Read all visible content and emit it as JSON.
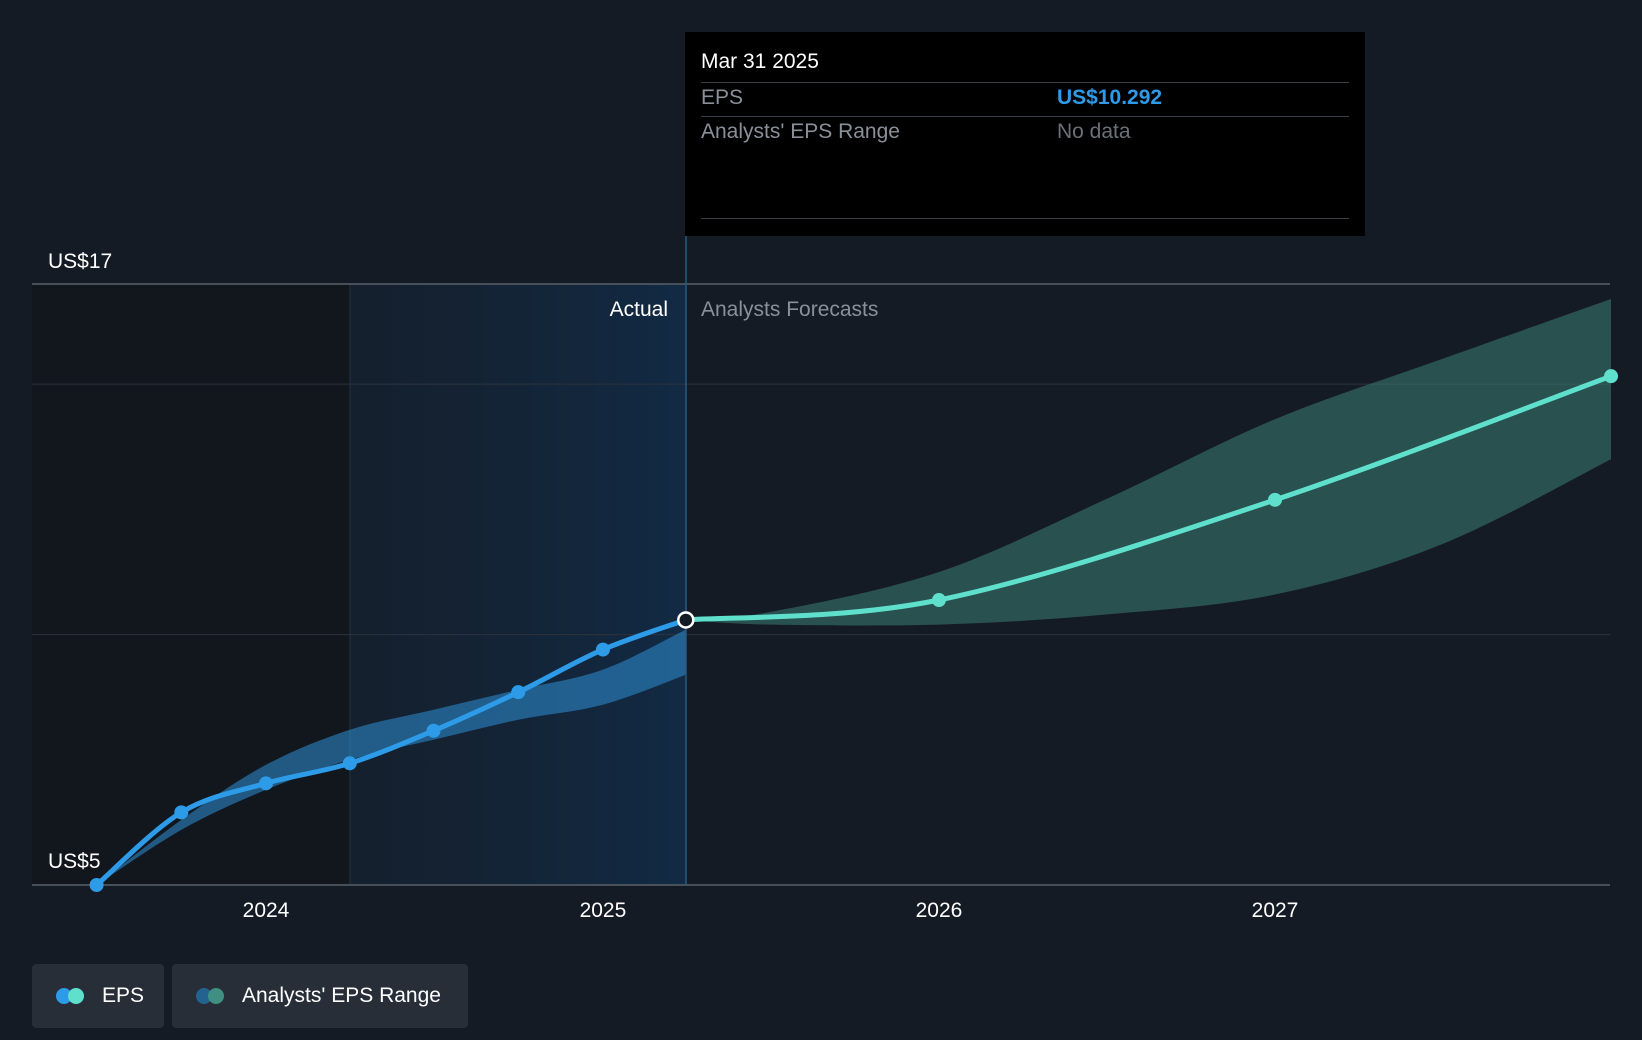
{
  "chart_data": {
    "type": "line",
    "y_axis": {
      "top_label": "US$17",
      "bottom_label": "US$5",
      "ylim": [
        5,
        17
      ],
      "gridlines": [
        5,
        10,
        15,
        17
      ]
    },
    "x_axis": {
      "tick_labels": [
        "2024",
        "2025",
        "2026",
        "2027"
      ]
    },
    "region_labels": {
      "actual": "Actual",
      "forecast": "Analysts Forecasts"
    },
    "series": [
      {
        "name": "EPS",
        "kind": "actual",
        "color": "#2d9be8",
        "points": [
          [
            "2023-06-30",
            5.0
          ],
          [
            "2023-09-30",
            6.45
          ],
          [
            "2023-12-31",
            7.03
          ],
          [
            "2024-03-31",
            7.43
          ],
          [
            "2024-06-30",
            8.08
          ],
          [
            "2024-09-30",
            8.85
          ],
          [
            "2024-12-31",
            9.7
          ],
          [
            "2025-03-31",
            10.292
          ]
        ]
      },
      {
        "name": "EPS",
        "kind": "forecast",
        "color": "#5fe0cd",
        "points": [
          [
            "2025-03-31",
            10.292
          ],
          [
            "2025-12-31",
            10.69
          ],
          [
            "2026-12-31",
            12.69
          ],
          [
            "2027-12-31",
            15.16
          ]
        ]
      }
    ],
    "ranges": [
      {
        "name": "Analysts' EPS Range",
        "kind": "actual",
        "color": "#2d8fd6",
        "points": [
          [
            "2023-06-30",
            5.0,
            5.0
          ],
          [
            "2023-09-30",
            6.1,
            6.3
          ],
          [
            "2023-12-31",
            6.9,
            7.4
          ],
          [
            "2024-03-31",
            7.5,
            8.1
          ],
          [
            "2024-06-30",
            7.9,
            8.5
          ],
          [
            "2024-09-30",
            8.3,
            8.9
          ],
          [
            "2024-12-31",
            8.6,
            9.3
          ],
          [
            "2025-03-31",
            9.2,
            10.1
          ]
        ]
      },
      {
        "name": "Analysts' EPS Range",
        "kind": "forecast",
        "color": "#3a7d73",
        "points": [
          [
            "2025-03-31",
            10.29,
            10.29
          ],
          [
            "2025-06-30",
            10.2,
            10.45
          ],
          [
            "2025-12-31",
            10.2,
            11.25
          ],
          [
            "2026-06-30",
            10.4,
            12.7
          ],
          [
            "2026-12-31",
            10.8,
            14.3
          ],
          [
            "2027-06-30",
            11.8,
            15.5
          ],
          [
            "2027-12-31",
            13.5,
            16.7
          ]
        ]
      }
    ],
    "highlighted_point": {
      "date": "2025-03-31",
      "value": 10.292
    }
  },
  "tooltip": {
    "date": "Mar 31 2025",
    "eps_label": "EPS",
    "eps_value": "US$10.292",
    "range_label": "Analysts' EPS Range",
    "range_value": "No data"
  },
  "legend": [
    {
      "label": "EPS",
      "colors": [
        "#2d9be8",
        "#5fe0cd"
      ]
    },
    {
      "label": "Analysts' EPS Range",
      "colors": [
        "#23638f",
        "#3f8f83"
      ]
    }
  ]
}
